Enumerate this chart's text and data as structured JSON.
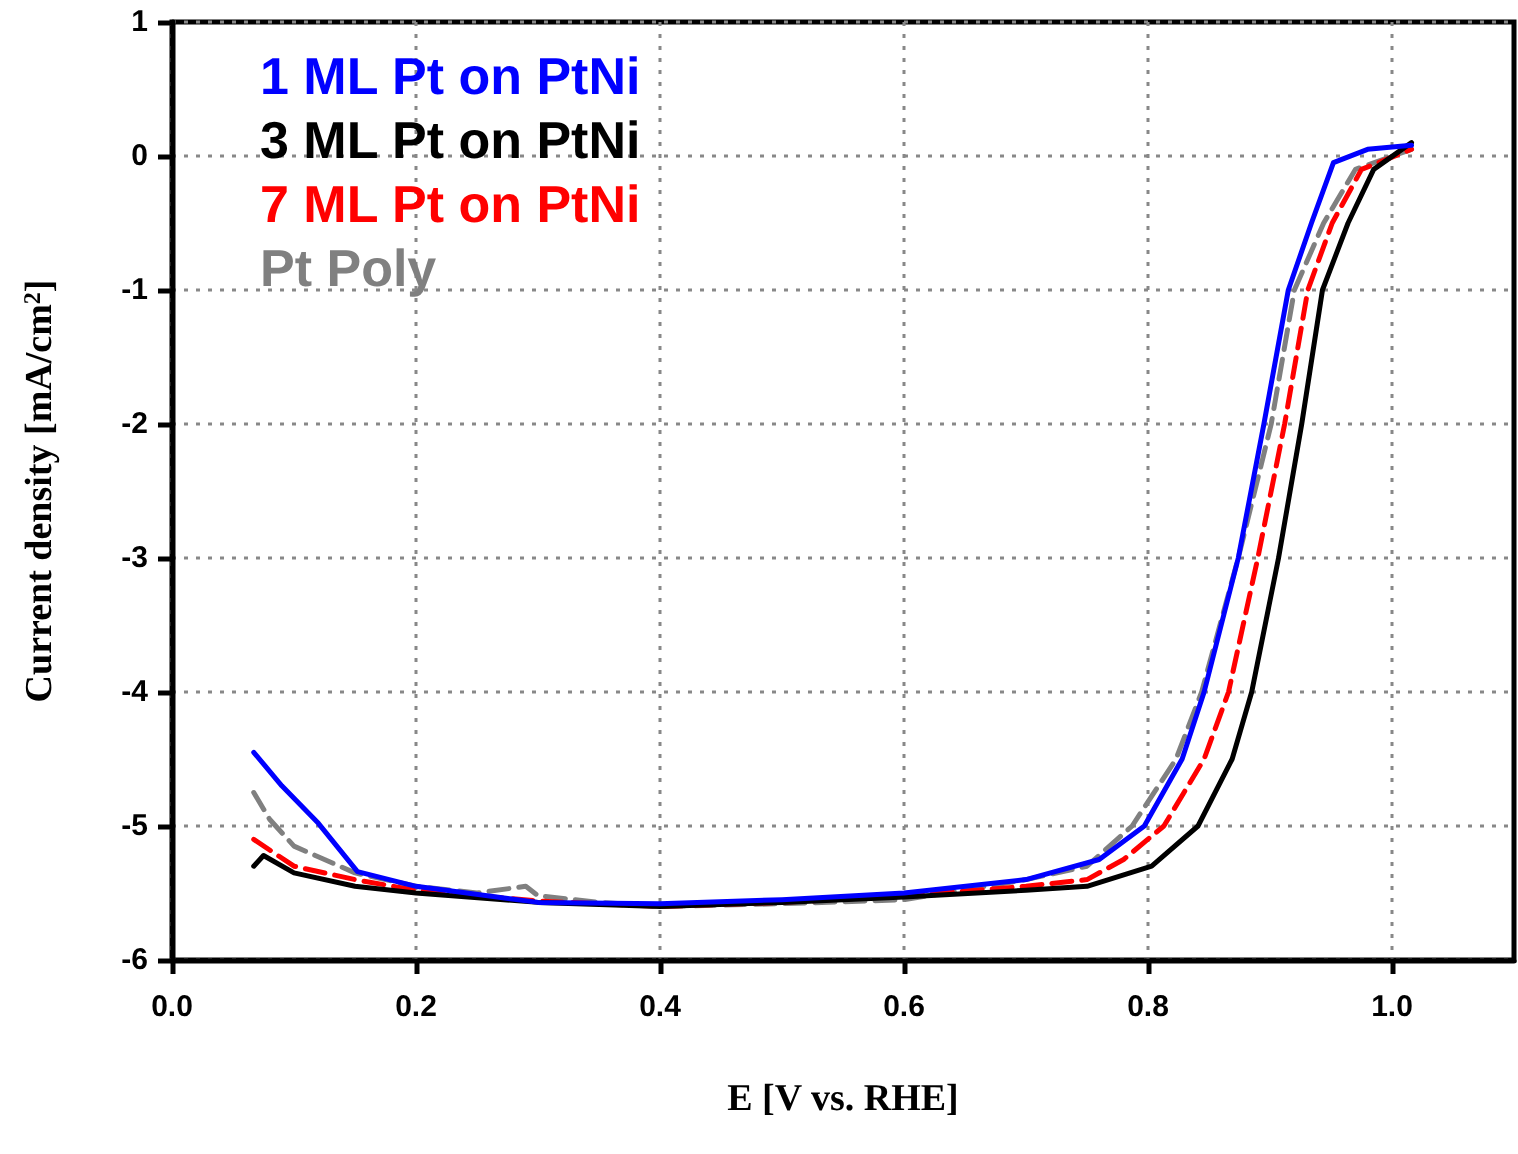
{
  "chart_data": {
    "type": "line",
    "xlabel": "E [V vs. RHE]",
    "ylabel": "Current density [mA/cm$^{2}$]",
    "xlim": [
      0,
      1.1
    ],
    "xticks": [
      {
        "value": 0,
        "label": "0.0"
      },
      {
        "value": 0.2,
        "label": "0.2"
      },
      {
        "value": 0.4,
        "label": "0.4"
      },
      {
        "value": 0.6,
        "label": "0.6"
      },
      {
        "value": 0.8,
        "label": "0.8"
      },
      {
        "value": 1.0,
        "label": "1.0"
      }
    ],
    "ylim": [
      -6,
      1
    ],
    "yticks": [
      -6,
      -5,
      -4,
      -3,
      -2,
      -1,
      0,
      1
    ],
    "grid": true,
    "legend": "top left",
    "marker": "none",
    "series": [
      {
        "name": "1 ML Pt on PtNi",
        "color": "#0000ff",
        "line_style": "solid",
        "x": [
          0.067,
          0.09,
          0.12,
          0.152,
          0.2,
          0.3,
          0.4,
          0.5,
          0.6,
          0.7,
          0.76,
          0.797,
          0.828,
          0.846,
          0.874,
          0.895,
          0.915,
          0.934,
          0.952,
          0.98,
          1.016
        ],
        "values": [
          -4.45,
          -4.7,
          -4.98,
          -5.34,
          -5.45,
          -5.57,
          -5.58,
          -5.55,
          -5.5,
          -5.4,
          -5.25,
          -5.0,
          -4.5,
          -4.0,
          -3.0,
          -2.0,
          -1.0,
          -0.5,
          -0.05,
          0.05,
          0.08
        ]
      },
      {
        "name": "3 ML Pt on PtNi",
        "color": "#000000",
        "line_style": "solid",
        "x": [
          0.067,
          0.075,
          0.1,
          0.15,
          0.2,
          0.3,
          0.4,
          0.5,
          0.6,
          0.7,
          0.75,
          0.803,
          0.841,
          0.869,
          0.885,
          0.907,
          0.926,
          0.943,
          0.964,
          0.985,
          1.016
        ],
        "values": [
          -5.3,
          -5.22,
          -5.35,
          -5.45,
          -5.5,
          -5.57,
          -5.6,
          -5.57,
          -5.53,
          -5.48,
          -5.45,
          -5.3,
          -5.0,
          -4.5,
          -4.0,
          -3.0,
          -2.0,
          -1.0,
          -0.5,
          -0.1,
          0.1
        ]
      },
      {
        "name": "7 ML Pt on PtNi",
        "color": "#ff0000",
        "line_style": "dashed",
        "x": [
          0.067,
          0.1,
          0.15,
          0.2,
          0.3,
          0.4,
          0.5,
          0.6,
          0.7,
          0.75,
          0.78,
          0.813,
          0.846,
          0.866,
          0.89,
          0.912,
          0.931,
          0.951,
          0.975,
          1.016
        ],
        "values": [
          -5.1,
          -5.3,
          -5.4,
          -5.48,
          -5.56,
          -5.6,
          -5.57,
          -5.52,
          -5.45,
          -5.4,
          -5.25,
          -5.0,
          -4.5,
          -4.0,
          -3.0,
          -2.0,
          -1.0,
          -0.5,
          -0.1,
          0.05
        ]
      },
      {
        "name": "Pt Poly",
        "color": "#808080",
        "line_style": "dashed",
        "x": [
          0.067,
          0.08,
          0.1,
          0.15,
          0.2,
          0.25,
          0.29,
          0.3,
          0.35,
          0.4,
          0.5,
          0.6,
          0.7,
          0.75,
          0.787,
          0.823,
          0.844,
          0.874,
          0.901,
          0.92,
          0.944,
          0.97,
          1.016
        ],
        "values": [
          -4.75,
          -4.95,
          -5.15,
          -5.35,
          -5.45,
          -5.5,
          -5.45,
          -5.52,
          -5.57,
          -5.6,
          -5.58,
          -5.55,
          -5.4,
          -5.3,
          -5.0,
          -4.5,
          -4.0,
          -3.0,
          -2.0,
          -1.0,
          -0.5,
          -0.1,
          0.05
        ]
      }
    ]
  }
}
